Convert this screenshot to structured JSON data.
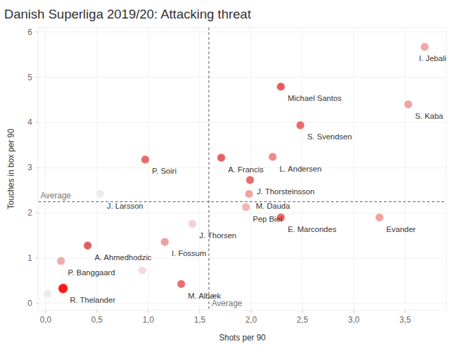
{
  "chart_data": {
    "type": "scatter",
    "title": "Danish Superliga 2019/20: Attacking threat",
    "x_label": "Shots per 90",
    "y_label": "Touches in box per 90",
    "labels": [
      "I. Jebali",
      "Michael Santos",
      "S. Kaba",
      "S. Svendsen",
      "P. Soiri",
      "A. Francis",
      "L. Andersen",
      "J. Thorsteinsson",
      "M. Dauda",
      "J. Larsson",
      "Pep Biel",
      "E. Marcondes",
      "Evander",
      "J. Thorsen",
      "I. Fossum",
      "A. Ahmedhodzic",
      "P. Banggaard",
      null,
      "M. Albæk",
      null,
      null,
      "R. Thelander"
    ],
    "x": [
      3.69,
      2.29,
      3.53,
      2.48,
      0.97,
      1.71,
      2.21,
      1.99,
      1.98,
      0.53,
      1.95,
      2.29,
      3.25,
      1.43,
      1.16,
      0.41,
      0.15,
      0.94,
      1.32,
      0.02,
      0.18,
      0.17
    ],
    "values": [
      5.67,
      4.79,
      4.4,
      3.94,
      3.18,
      3.22,
      3.24,
      2.73,
      2.42,
      2.42,
      2.13,
      1.9,
      1.9,
      1.76,
      1.36,
      1.28,
      0.94,
      0.73,
      0.43,
      0.21,
      0.37,
      0.33
    ],
    "colors": [
      "#f2a7a7",
      "#e65c5c",
      "#f0a3a3",
      "#e86a6a",
      "#e86a6a",
      "#e66060",
      "#ee8c8c",
      "#e86a6a",
      "#f0a3a3",
      "#ececec",
      "#f2b3b3",
      "#e86a6a",
      "#f0a3a3",
      "#f3d2d2",
      "#eea0a0",
      "#e06060",
      "#f0aaaa",
      "#f5dcdc",
      "#e87070",
      "#ececec",
      "#f5dada",
      "#ff1a1a"
    ],
    "marker": "circle",
    "xlim": [
      -0.07,
      3.9
    ],
    "ylim": [
      -0.15,
      6.1
    ],
    "xticks": [
      {
        "value": 0,
        "label": "0,0"
      },
      {
        "value": 0.5,
        "label": "0,5"
      },
      {
        "value": 1,
        "label": "1,0"
      },
      {
        "value": 1.5,
        "label": "1,5"
      },
      {
        "value": 2,
        "label": "2,0"
      },
      {
        "value": 2.5,
        "label": "2,5"
      },
      {
        "value": 3,
        "label": "3,0"
      },
      {
        "value": 3.5,
        "label": "3,5"
      }
    ],
    "yticks": [
      0,
      1,
      2,
      3,
      4,
      5,
      6
    ],
    "grid": true,
    "annotations": [
      {
        "axis": "x",
        "value": 1.59,
        "label": "Average"
      },
      {
        "axis": "y",
        "value": 2.25,
        "label": "Average"
      }
    ]
  }
}
